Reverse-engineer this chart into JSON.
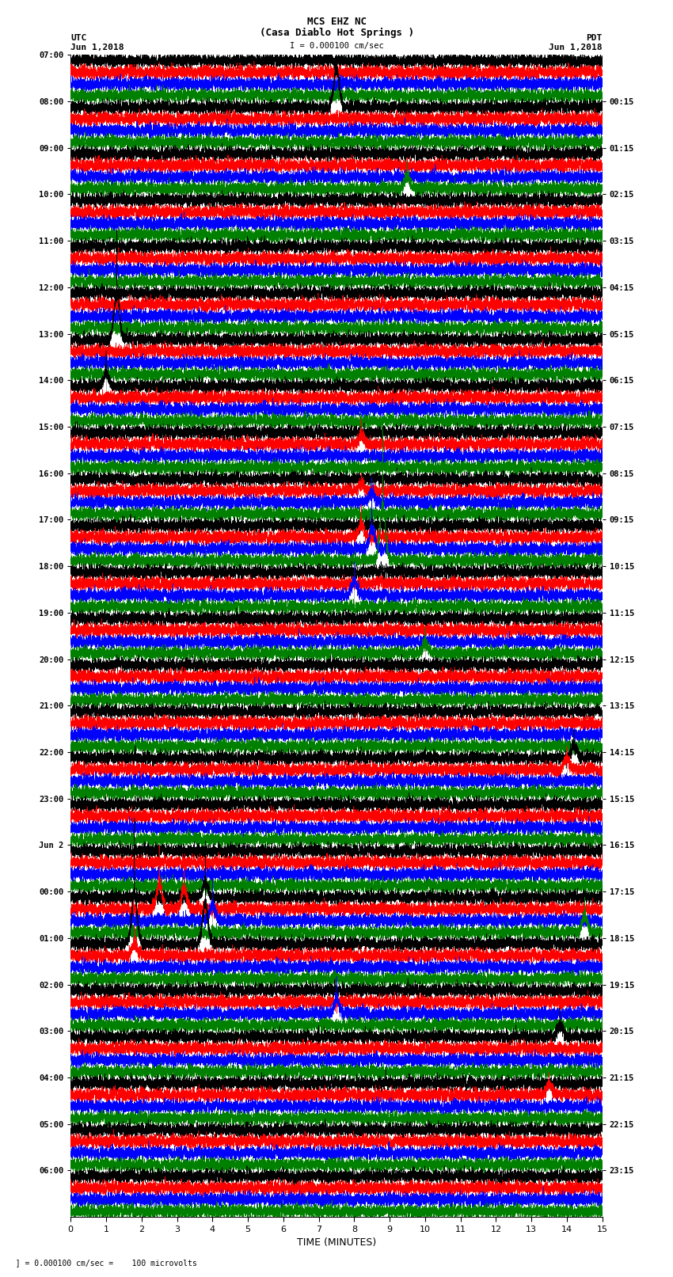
{
  "title_line1": "MCS EHZ NC",
  "title_line2": "(Casa Diablo Hot Springs )",
  "scale_label": "I = 0.000100 cm/sec",
  "left_label": "UTC",
  "right_label": "PDT",
  "date_left": "Jun 1,2018",
  "date_right": "Jun 1,2018",
  "xlabel": "TIME (MINUTES)",
  "footer_left": "  ] = 0.000100 cm/sec =    100 microvolts",
  "utc_times": [
    "07:00",
    "08:00",
    "09:00",
    "10:00",
    "11:00",
    "12:00",
    "13:00",
    "14:00",
    "15:00",
    "16:00",
    "17:00",
    "18:00",
    "19:00",
    "20:00",
    "21:00",
    "22:00",
    "23:00",
    "Jun 2",
    "00:00",
    "01:00",
    "02:00",
    "03:00",
    "04:00",
    "05:00",
    "06:00"
  ],
  "pdt_times": [
    "00:15",
    "01:15",
    "02:15",
    "03:15",
    "04:15",
    "05:15",
    "06:15",
    "07:15",
    "08:15",
    "09:15",
    "10:15",
    "11:15",
    "12:15",
    "13:15",
    "14:15",
    "15:15",
    "16:15",
    "17:15",
    "18:15",
    "19:15",
    "20:15",
    "21:15",
    "22:15",
    "23:15"
  ],
  "n_rows": 25,
  "traces_per_row": 4,
  "colors": [
    "black",
    "red",
    "blue",
    "green"
  ],
  "duration_minutes": 15,
  "sample_rate": 40,
  "background_color": "white",
  "figsize": [
    8.5,
    16.13
  ],
  "dpi": 100,
  "special_events": [
    {
      "row": 1,
      "trace": 0,
      "minute": 7.5,
      "amplitude": 15.0
    },
    {
      "row": 2,
      "trace": 3,
      "minute": 9.5,
      "amplitude": 5.0
    },
    {
      "row": 6,
      "trace": 0,
      "minute": 1.3,
      "amplitude": 18.0
    },
    {
      "row": 7,
      "trace": 0,
      "minute": 1.0,
      "amplitude": 5.0
    },
    {
      "row": 8,
      "trace": 1,
      "minute": 8.2,
      "amplitude": 4.0
    },
    {
      "row": 9,
      "trace": 2,
      "minute": 8.5,
      "amplitude": 4.0
    },
    {
      "row": 9,
      "trace": 1,
      "minute": 8.2,
      "amplitude": 3.0
    },
    {
      "row": 10,
      "trace": 3,
      "minute": 8.8,
      "amplitude": 22.0
    },
    {
      "row": 10,
      "trace": 2,
      "minute": 8.5,
      "amplitude": 8.0
    },
    {
      "row": 10,
      "trace": 1,
      "minute": 8.2,
      "amplitude": 5.0
    },
    {
      "row": 11,
      "trace": 2,
      "minute": 8.0,
      "amplitude": 5.0
    },
    {
      "row": 12,
      "trace": 3,
      "minute": 10.0,
      "amplitude": 4.0
    },
    {
      "row": 15,
      "trace": 0,
      "minute": 14.2,
      "amplitude": 5.0
    },
    {
      "row": 15,
      "trace": 1,
      "minute": 14.0,
      "amplitude": 4.0
    },
    {
      "row": 18,
      "trace": 3,
      "minute": 14.5,
      "amplitude": 6.0
    },
    {
      "row": 18,
      "trace": 1,
      "minute": 2.5,
      "amplitude": 10.0
    },
    {
      "row": 18,
      "trace": 1,
      "minute": 3.2,
      "amplitude": 8.0
    },
    {
      "row": 18,
      "trace": 2,
      "minute": 4.0,
      "amplitude": 6.0
    },
    {
      "row": 18,
      "trace": 0,
      "minute": 3.8,
      "amplitude": 6.0
    },
    {
      "row": 19,
      "trace": 0,
      "minute": 1.8,
      "amplitude": 20.0
    },
    {
      "row": 19,
      "trace": 0,
      "minute": 3.8,
      "amplitude": 16.0
    },
    {
      "row": 19,
      "trace": 1,
      "minute": 1.8,
      "amplitude": 5.0
    },
    {
      "row": 20,
      "trace": 2,
      "minute": 7.5,
      "amplitude": 6.0
    },
    {
      "row": 21,
      "trace": 0,
      "minute": 13.8,
      "amplitude": 5.0
    },
    {
      "row": 22,
      "trace": 1,
      "minute": 13.5,
      "amplitude": 4.0
    }
  ]
}
